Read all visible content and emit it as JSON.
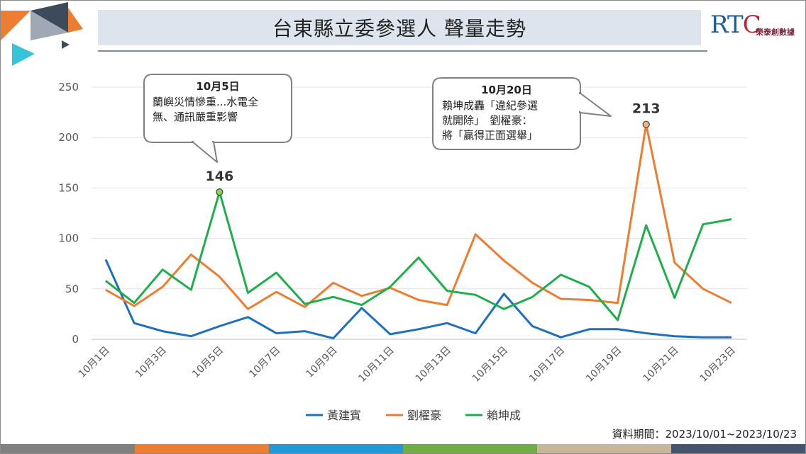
{
  "title": "台東縣立委參選人 聲量走勢",
  "brand": {
    "logo_text": "RTC",
    "name": "榮泰創數據"
  },
  "source_note": "資料期間：2023/10/01~2023/10/23",
  "bottom_bar_colors": [
    "#808080",
    "#ed7d31",
    "#1f9ad6",
    "#70ad47",
    "#c9b79c",
    "#44546a"
  ],
  "chart_data": {
    "type": "line",
    "title": "台東縣立委參選人 聲量走勢",
    "xlabel": "",
    "ylabel": "",
    "ylim": [
      0,
      250
    ],
    "yticks": [
      0,
      50,
      100,
      150,
      200,
      250
    ],
    "grid": true,
    "legend": "bottom",
    "categories": [
      "10月1日",
      "10月2日",
      "10月3日",
      "10月4日",
      "10月5日",
      "10月6日",
      "10月7日",
      "10月8日",
      "10月9日",
      "10月10日",
      "10月11日",
      "10月12日",
      "10月13日",
      "10月14日",
      "10月15日",
      "10月16日",
      "10月17日",
      "10月18日",
      "10月19日",
      "10月20日",
      "10月21日",
      "10月22日",
      "10月23日"
    ],
    "tick_labels": [
      "10月1日",
      "10月3日",
      "10月5日",
      "10月7日",
      "10月9日",
      "10月11日",
      "10月13日",
      "10月15日",
      "10月17日",
      "10月19日",
      "10月21日",
      "10月23日"
    ],
    "series": [
      {
        "name": "黃建賓",
        "color": "#1f6fbf",
        "values": [
          79,
          16,
          8,
          3,
          13,
          22,
          6,
          8,
          1,
          31,
          5,
          10,
          16,
          6,
          45,
          13,
          2,
          10,
          10,
          6,
          3,
          2,
          2
        ]
      },
      {
        "name": "劉櫂豪",
        "color": "#ed7d31",
        "values": [
          49,
          33,
          52,
          84,
          62,
          30,
          47,
          32,
          56,
          43,
          51,
          39,
          34,
          104,
          78,
          56,
          40,
          39,
          36,
          213,
          76,
          50,
          36
        ]
      },
      {
        "name": "賴坤成",
        "color": "#1fae4b",
        "values": [
          58,
          36,
          69,
          49,
          146,
          46,
          66,
          35,
          42,
          34,
          52,
          81,
          48,
          44,
          30,
          42,
          64,
          52,
          19,
          113,
          41,
          114,
          119
        ]
      }
    ],
    "annotations": [
      {
        "index": 4,
        "series": 2,
        "value_label": "146",
        "date": "10月5日",
        "lines": [
          "蘭嶼災情慘重...水電全",
          "無、通訊嚴重影響"
        ]
      },
      {
        "index": 19,
        "series": 1,
        "value_label": "213",
        "date": "10月20日",
        "lines": [
          "賴坤成轟「違紀參選",
          "就開除」　劉櫂豪：",
          "將「贏得正面選舉」"
        ]
      }
    ]
  }
}
